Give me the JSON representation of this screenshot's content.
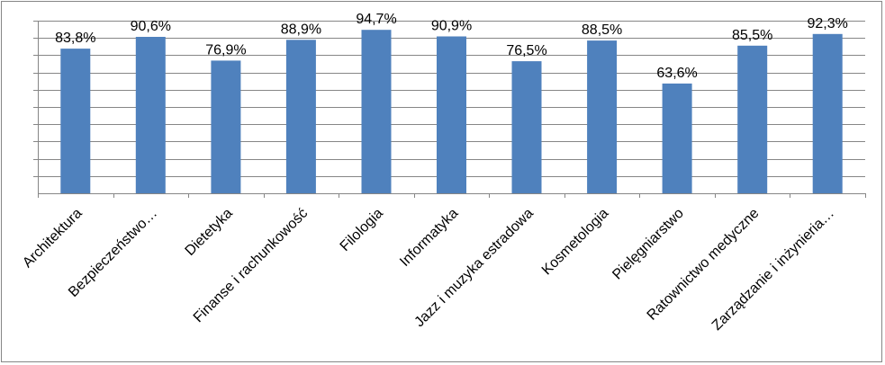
{
  "chart_data": {
    "type": "bar",
    "categories": [
      "Architektura",
      "Bezpieczeństwo…",
      "Dietetyka",
      "Finanse i rachunkowość",
      "Filologia",
      "Informatyka",
      "Jazz i muzyka estradowa",
      "Kosmetologia",
      "Pielęgniarstwo",
      "Ratownictwo medyczne",
      "Zarządzanie i inżynieria…"
    ],
    "values": [
      83.8,
      90.6,
      76.9,
      88.9,
      94.7,
      90.9,
      76.5,
      88.5,
      63.6,
      85.5,
      92.3
    ],
    "data_labels": [
      "83,8%",
      "90,6%",
      "76,9%",
      "88,9%",
      "94,7%",
      "90,9%",
      "76,5%",
      "88,5%",
      "63,6%",
      "85,5%",
      "92,3%"
    ],
    "ylim": [
      0,
      100
    ],
    "grid": true,
    "bar_color": "#4f81bd"
  }
}
